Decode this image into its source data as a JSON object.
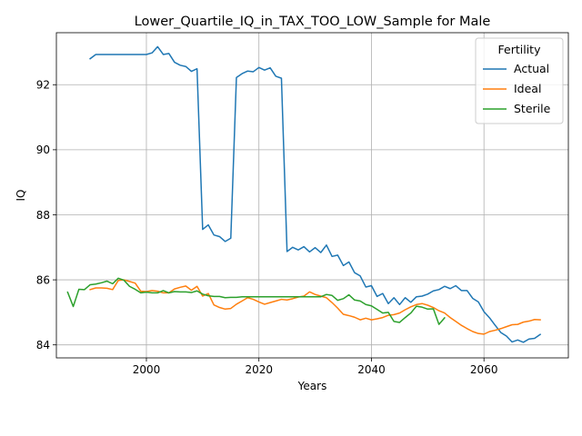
{
  "chart_data": {
    "type": "line",
    "title": "Lower_Quartile_IQ_in_TAX_TOO_LOW_Sample for Male",
    "xlabel": "Years",
    "ylabel": "IQ",
    "xlim": [
      1984,
      2075
    ],
    "ylim": [
      83.6,
      93.6
    ],
    "xticks": [
      2000,
      2020,
      2040,
      2060
    ],
    "yticks": [
      84,
      86,
      88,
      90,
      92
    ],
    "grid": true,
    "legend": {
      "title": "Fertility",
      "placement": "top-right"
    },
    "colors": {
      "Actual": "#1f77b4",
      "Ideal": "#ff7f0e",
      "Sterile": "#2ca02c"
    },
    "series": [
      {
        "name": "Actual",
        "x": [
          1990,
          1991,
          1992,
          1993,
          1994,
          1995,
          1996,
          1997,
          1998,
          1999,
          2000,
          2001,
          2002,
          2003,
          2004,
          2005,
          2006,
          2007,
          2008,
          2009,
          2010,
          2011,
          2012,
          2013,
          2014,
          2015,
          2016,
          2017,
          2018,
          2019,
          2020,
          2021,
          2022,
          2023,
          2024,
          2025,
          2026,
          2027,
          2028,
          2029,
          2030,
          2031,
          2032,
          2033,
          2034,
          2035,
          2036,
          2037,
          2038,
          2039,
          2040,
          2041,
          2042,
          2043,
          2044,
          2045,
          2046,
          2047,
          2048,
          2049,
          2050,
          2051,
          2052,
          2053,
          2054,
          2055,
          2056,
          2057,
          2058,
          2059,
          2060,
          2061,
          2062,
          2063,
          2064,
          2065,
          2066,
          2067,
          2068,
          2069,
          2070
        ],
        "y": [
          92.8,
          92.93,
          92.93,
          92.93,
          92.93,
          92.93,
          92.93,
          92.93,
          92.93,
          92.93,
          92.93,
          92.98,
          93.17,
          92.93,
          92.96,
          92.69,
          92.6,
          92.56,
          92.41,
          92.49,
          87.55,
          87.69,
          87.38,
          87.33,
          87.18,
          87.28,
          92.22,
          92.34,
          92.42,
          92.4,
          92.53,
          92.45,
          92.52,
          92.26,
          92.2,
          86.87,
          87.0,
          86.92,
          87.02,
          86.86,
          86.99,
          86.84,
          87.07,
          86.72,
          86.76,
          86.44,
          86.55,
          86.22,
          86.12,
          85.78,
          85.82,
          85.49,
          85.58,
          85.27,
          85.45,
          85.24,
          85.45,
          85.31,
          85.48,
          85.5,
          85.56,
          85.66,
          85.7,
          85.8,
          85.73,
          85.82,
          85.67,
          85.67,
          85.43,
          85.32,
          85.02,
          84.83,
          84.6,
          84.38,
          84.27,
          84.09,
          84.15,
          84.08,
          84.18,
          84.2,
          84.32
        ]
      },
      {
        "name": "Ideal",
        "x": [
          1990,
          1991,
          1992,
          1993,
          1994,
          1995,
          1996,
          1997,
          1998,
          1999,
          2000,
          2001,
          2002,
          2003,
          2004,
          2005,
          2006,
          2007,
          2008,
          2009,
          2010,
          2011,
          2012,
          2013,
          2014,
          2015,
          2016,
          2017,
          2018,
          2019,
          2020,
          2021,
          2022,
          2023,
          2024,
          2025,
          2026,
          2027,
          2028,
          2029,
          2030,
          2031,
          2032,
          2033,
          2034,
          2035,
          2036,
          2037,
          2038,
          2039,
          2040,
          2041,
          2042,
          2043,
          2044,
          2045,
          2046,
          2047,
          2048,
          2049,
          2050,
          2051,
          2052,
          2053,
          2054,
          2055,
          2056,
          2057,
          2058,
          2059,
          2060,
          2061,
          2062,
          2063,
          2064,
          2065,
          2066,
          2067,
          2068,
          2069,
          2070
        ],
        "y": [
          85.7,
          85.75,
          85.75,
          85.74,
          85.7,
          85.98,
          86.0,
          85.95,
          85.9,
          85.65,
          85.64,
          85.67,
          85.65,
          85.6,
          85.6,
          85.72,
          85.77,
          85.81,
          85.68,
          85.8,
          85.5,
          85.58,
          85.23,
          85.15,
          85.1,
          85.12,
          85.25,
          85.35,
          85.45,
          85.4,
          85.32,
          85.25,
          85.3,
          85.35,
          85.4,
          85.38,
          85.42,
          85.47,
          85.5,
          85.63,
          85.55,
          85.5,
          85.45,
          85.3,
          85.13,
          84.94,
          84.9,
          84.85,
          84.77,
          84.82,
          84.77,
          84.8,
          84.84,
          84.91,
          84.93,
          84.98,
          85.08,
          85.17,
          85.24,
          85.27,
          85.22,
          85.15,
          85.05,
          84.98,
          84.84,
          84.72,
          84.6,
          84.5,
          84.41,
          84.35,
          84.33,
          84.41,
          84.45,
          84.5,
          84.56,
          84.62,
          84.63,
          84.7,
          84.73,
          84.78,
          84.77
        ]
      },
      {
        "name": "Sterile",
        "x": [
          1986,
          1987,
          1988,
          1989,
          1990,
          1991,
          1992,
          1993,
          1994,
          1995,
          1996,
          1997,
          1998,
          1999,
          2000,
          2001,
          2002,
          2003,
          2004,
          2005,
          2006,
          2007,
          2008,
          2009,
          2010,
          2011,
          2012,
          2013,
          2014,
          2015,
          2016,
          2017,
          2018,
          2019,
          2020,
          2021,
          2022,
          2023,
          2024,
          2025,
          2026,
          2027,
          2028,
          2029,
          2030,
          2031,
          2032,
          2033,
          2034,
          2035,
          2036,
          2037,
          2038,
          2039,
          2040,
          2041,
          2042,
          2043,
          2044,
          2045,
          2046,
          2047,
          2048,
          2049,
          2050,
          2051,
          2052,
          2053
        ],
        "y": [
          85.62,
          85.18,
          85.71,
          85.7,
          85.85,
          85.87,
          85.91,
          85.96,
          85.88,
          86.05,
          85.99,
          85.8,
          85.71,
          85.6,
          85.62,
          85.6,
          85.6,
          85.67,
          85.6,
          85.64,
          85.63,
          85.63,
          85.61,
          85.66,
          85.56,
          85.51,
          85.49,
          85.49,
          85.45,
          85.46,
          85.46,
          85.48,
          85.48,
          85.48,
          85.48,
          85.48,
          85.48,
          85.48,
          85.48,
          85.48,
          85.48,
          85.48,
          85.48,
          85.48,
          85.48,
          85.48,
          85.55,
          85.52,
          85.37,
          85.42,
          85.54,
          85.38,
          85.35,
          85.24,
          85.2,
          85.09,
          84.98,
          85.0,
          84.72,
          84.69,
          84.84,
          84.98,
          85.19,
          85.16,
          85.1,
          85.11,
          84.63,
          84.83
        ]
      }
    ]
  }
}
